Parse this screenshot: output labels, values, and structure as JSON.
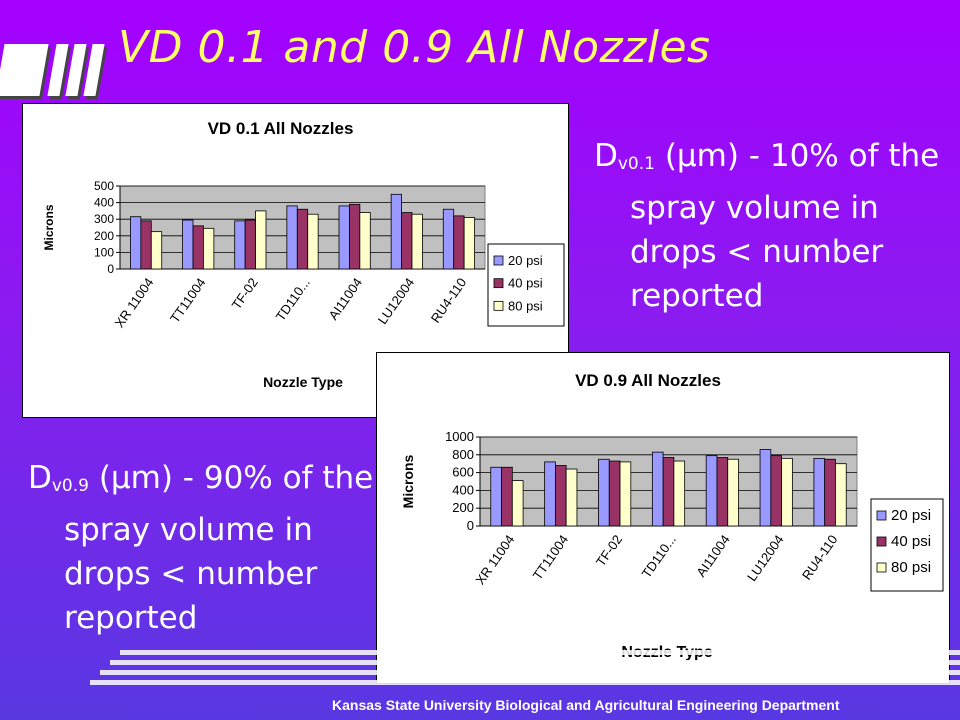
{
  "slide": {
    "title": "VD 0.1 and 0.9 All Nozzles",
    "footer": "Kansas State University Biological and Agricultural Engineering Department",
    "bullet1": {
      "main": "D",
      "sub": "v0.1",
      "rest": " (μm) - 10% of the spray volume in drops < number reported"
    },
    "bullet2": {
      "main": "D",
      "sub": "v0.9",
      "rest": " (μm) - 90% of the spray volume in drops < number reported"
    },
    "colors": {
      "background": "#a400ff",
      "title": "#ffff66",
      "text": "#ffffff"
    }
  },
  "chart_data": [
    {
      "type": "bar",
      "title": "VD 0.1 All Nozzles",
      "xlabel": "Nozzle Type",
      "ylabel": "Microns",
      "ylim": [
        0,
        500
      ],
      "yticks": [
        0,
        100,
        200,
        300,
        400,
        500
      ],
      "grid": true,
      "legend": "right",
      "categories": [
        "XR 11004",
        "TT11004",
        "TF-02",
        "TD110...",
        "AI11004",
        "LU12004",
        "RU4-110"
      ],
      "series": [
        {
          "name": "20 psi",
          "color": "#9999ff",
          "values": [
            315,
            295,
            290,
            380,
            380,
            450,
            360
          ]
        },
        {
          "name": "40 psi",
          "color": "#993366",
          "values": [
            290,
            260,
            295,
            360,
            390,
            340,
            320
          ]
        },
        {
          "name": "80 psi",
          "color": "#ffffcc",
          "values": [
            225,
            245,
            350,
            330,
            340,
            330,
            310
          ]
        }
      ]
    },
    {
      "type": "bar",
      "title": "VD 0.9 All Nozzles",
      "xlabel": "Nozzle Type",
      "ylabel": "Microns",
      "ylim": [
        0,
        1000
      ],
      "yticks": [
        0,
        200,
        400,
        600,
        800,
        1000
      ],
      "grid": true,
      "legend": "right",
      "categories": [
        "XR 11004",
        "TT11004",
        "TF-02",
        "TD110...",
        "AI11004",
        "LU12004",
        "RU4-110"
      ],
      "series": [
        {
          "name": "20 psi",
          "color": "#9999ff",
          "values": [
            660,
            720,
            750,
            830,
            790,
            860,
            760
          ]
        },
        {
          "name": "40 psi",
          "color": "#993366",
          "values": [
            660,
            680,
            730,
            770,
            770,
            790,
            750
          ]
        },
        {
          "name": "80 psi",
          "color": "#ffffcc",
          "values": [
            510,
            640,
            720,
            730,
            750,
            760,
            700
          ]
        }
      ]
    }
  ]
}
